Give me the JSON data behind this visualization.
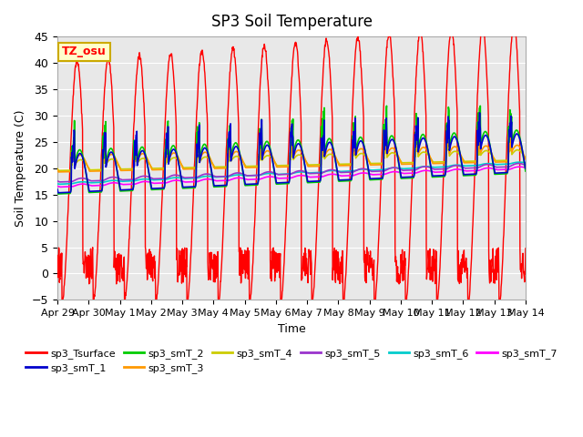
{
  "title": "SP3 Soil Temperature",
  "ylabel": "Soil Temperature (C)",
  "xlabel": "Time",
  "ylim": [
    -5,
    45
  ],
  "yticks": [
    -5,
    0,
    5,
    10,
    15,
    20,
    25,
    30,
    35,
    40,
    45
  ],
  "x_tick_labels": [
    "Apr 29",
    "Apr 30",
    "May 1",
    "May 2",
    "May 3",
    "May 4",
    "May 5",
    "May 6",
    "May 7",
    "May 8",
    "May 9",
    "May 10",
    "May 11",
    "May 12",
    "May 13",
    "May 14"
  ],
  "x_tick_positions": [
    0,
    1,
    2,
    3,
    4,
    5,
    6,
    7,
    8,
    9,
    10,
    11,
    12,
    13,
    14,
    15
  ],
  "colors": {
    "sp3_Tsurface": "#ff0000",
    "sp3_smT_1": "#0000cc",
    "sp3_smT_2": "#00cc00",
    "sp3_smT_3": "#ff9900",
    "sp3_smT_4": "#cccc00",
    "sp3_smT_5": "#9933cc",
    "sp3_smT_6": "#00cccc",
    "sp3_smT_7": "#ff00ff"
  },
  "plot_bg_color": "#e8e8e8",
  "tz_label": "TZ_osu",
  "tz_bg": "#ffffcc",
  "tz_border": "#ccaa00"
}
